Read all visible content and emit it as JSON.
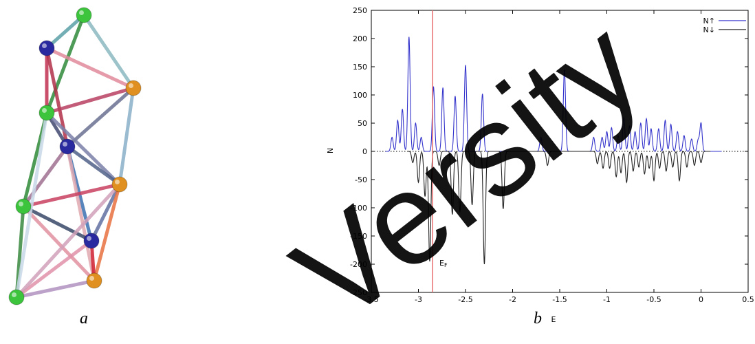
{
  "panels": {
    "a_label": "a",
    "b_label": "b"
  },
  "watermark": "Versity",
  "molecule": {
    "atoms": [
      {
        "id": 1,
        "color": "#3cc43c"
      },
      {
        "id": 2,
        "color": "#2a2aa0"
      },
      {
        "id": 3,
        "color": "#e09020"
      },
      {
        "id": 4,
        "color": "#3cc43c"
      },
      {
        "id": 5,
        "color": "#2a2aa0"
      },
      {
        "id": 6,
        "color": "#e09020"
      },
      {
        "id": 7,
        "color": "#3cc43c"
      },
      {
        "id": 8,
        "color": "#2a2aa0"
      },
      {
        "id": 9,
        "color": "#e09020"
      },
      {
        "id": 10,
        "color": "#3cc43c"
      }
    ]
  },
  "chart_data": {
    "type": "line",
    "xlabel": "E",
    "ylabel": "N",
    "xlim": [
      -3.5,
      0.5
    ],
    "ylim": [
      -250,
      250
    ],
    "x_ticks": [
      -3.5,
      -3,
      -2.5,
      -2,
      -1.5,
      -1,
      -0.5,
      0,
      0.5
    ],
    "x_tick_labels": [
      "-3.5",
      "-3",
      "-2.5",
      "-2",
      "-1.5",
      "-1",
      "-0.5",
      "0",
      "0.5"
    ],
    "y_ticks": [
      -250,
      -200,
      -150,
      -100,
      -50,
      0,
      50,
      100,
      150,
      200,
      250
    ],
    "y_tick_labels": [
      "-250",
      "-200",
      "-150",
      "-100",
      "-50",
      "0",
      "50",
      "100",
      "150",
      "200",
      "250"
    ],
    "legend_position": "top-right",
    "fermi_level": {
      "x": -2.85,
      "label": "E",
      "label_sub": "F",
      "color": "#e87070"
    },
    "series": [
      {
        "name": "N↑",
        "color": "#3333cc",
        "peaks": [
          {
            "e": -3.28,
            "h": 25
          },
          {
            "e": -3.22,
            "h": 55
          },
          {
            "e": -3.17,
            "h": 75
          },
          {
            "e": -3.1,
            "h": 203
          },
          {
            "e": -3.03,
            "h": 50
          },
          {
            "e": -2.97,
            "h": 25
          },
          {
            "e": -2.84,
            "h": 115
          },
          {
            "e": -2.74,
            "h": 113
          },
          {
            "e": -2.61,
            "h": 98
          },
          {
            "e": -2.5,
            "h": 153
          },
          {
            "e": -2.32,
            "h": 102
          },
          {
            "e": -1.7,
            "h": 25
          },
          {
            "e": -1.45,
            "h": 145
          },
          {
            "e": -1.14,
            "h": 25
          },
          {
            "e": -1.05,
            "h": 25
          },
          {
            "e": -1.0,
            "h": 35
          },
          {
            "e": -0.95,
            "h": 42
          },
          {
            "e": -0.88,
            "h": 28
          },
          {
            "e": -0.82,
            "h": 60
          },
          {
            "e": -0.76,
            "h": 45
          },
          {
            "e": -0.7,
            "h": 35
          },
          {
            "e": -0.64,
            "h": 50
          },
          {
            "e": -0.58,
            "h": 58
          },
          {
            "e": -0.53,
            "h": 40
          },
          {
            "e": -0.45,
            "h": 40
          },
          {
            "e": -0.38,
            "h": 55
          },
          {
            "e": -0.32,
            "h": 48
          },
          {
            "e": -0.25,
            "h": 35
          },
          {
            "e": -0.18,
            "h": 28
          },
          {
            "e": -0.1,
            "h": 22
          },
          {
            "e": -0.03,
            "h": 20
          },
          {
            "e": 0.0,
            "h": 50
          }
        ]
      },
      {
        "name": "N↓",
        "color": "#222222",
        "peaks": [
          {
            "e": -3.06,
            "h": -20
          },
          {
            "e": -3.0,
            "h": -55
          },
          {
            "e": -2.93,
            "h": -80
          },
          {
            "e": -2.88,
            "h": -195
          },
          {
            "e": -2.78,
            "h": -25
          },
          {
            "e": -2.64,
            "h": -112
          },
          {
            "e": -2.56,
            "h": -108
          },
          {
            "e": -2.43,
            "h": -95
          },
          {
            "e": -2.3,
            "h": -200
          },
          {
            "e": -2.1,
            "h": -102
          },
          {
            "e": -1.63,
            "h": -25
          },
          {
            "e": -1.1,
            "h": -22
          },
          {
            "e": -1.04,
            "h": -30
          },
          {
            "e": -0.97,
            "h": -30
          },
          {
            "e": -0.9,
            "h": -45
          },
          {
            "e": -0.85,
            "h": -38
          },
          {
            "e": -0.79,
            "h": -55
          },
          {
            "e": -0.72,
            "h": -35
          },
          {
            "e": -0.66,
            "h": -28
          },
          {
            "e": -0.6,
            "h": -40
          },
          {
            "e": -0.55,
            "h": -30
          },
          {
            "e": -0.5,
            "h": -52
          },
          {
            "e": -0.44,
            "h": -30
          },
          {
            "e": -0.37,
            "h": -35
          },
          {
            "e": -0.3,
            "h": -28
          },
          {
            "e": -0.23,
            "h": -52
          },
          {
            "e": -0.15,
            "h": -28
          },
          {
            "e": -0.07,
            "h": -25
          },
          {
            "e": 0.0,
            "h": -20
          }
        ]
      }
    ]
  }
}
